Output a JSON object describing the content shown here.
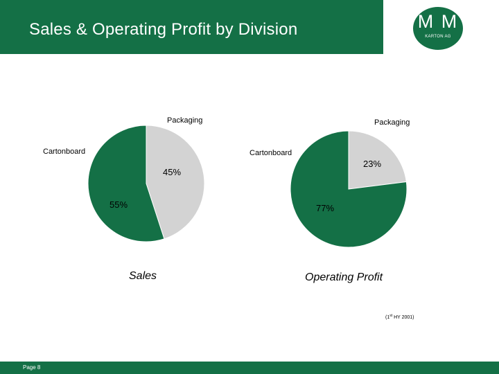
{
  "slide": {
    "title": "Sales & Operating Profit by Division",
    "logo_mark": "M M",
    "logo_sub": "KARTON AG",
    "footer_page": "Page 8",
    "note_prefix": "(1",
    "note_sup": "st",
    "note_suffix": " HY 2001)"
  },
  "colors": {
    "brand_green": "#147046",
    "slice_gray": "#d3d3d3"
  },
  "chart_data": [
    {
      "type": "pie",
      "title": "Sales",
      "slices": [
        {
          "label": "Packaging",
          "value": 45,
          "value_label": "45%",
          "color": "#d3d3d3"
        },
        {
          "label": "Cartonboard",
          "value": 55,
          "value_label": "55%",
          "color": "#147046"
        }
      ]
    },
    {
      "type": "pie",
      "title": "Operating Profit",
      "slices": [
        {
          "label": "Packaging",
          "value": 23,
          "value_label": "23%",
          "color": "#d3d3d3"
        },
        {
          "label": "Cartonboard",
          "value": 77,
          "value_label": "77%",
          "color": "#147046"
        }
      ]
    }
  ]
}
